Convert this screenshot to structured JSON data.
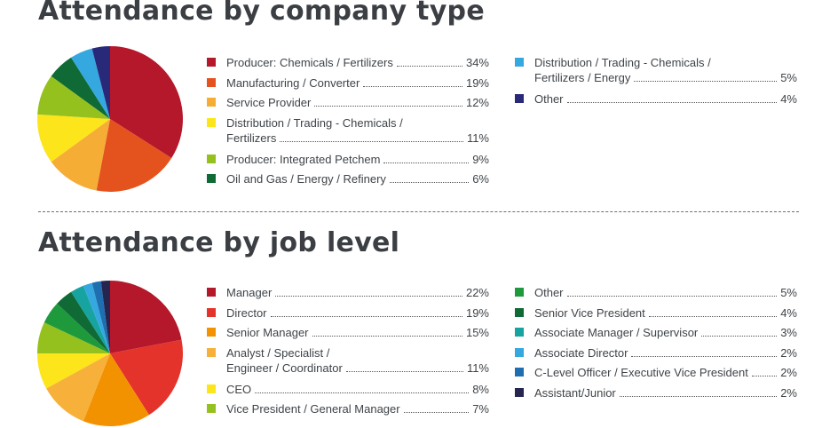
{
  "sections": [
    {
      "title": "Attendance by company type",
      "chart_data": {
        "type": "pie",
        "title": "Attendance by company type",
        "unit": "%",
        "slices": [
          {
            "label": "Producer: Chemicals / Fertilizers",
            "value": 34,
            "display": "34%",
            "color": "#b5172b"
          },
          {
            "label": "Manufacturing / Converter",
            "value": 19,
            "display": "19%",
            "color": "#e4521e"
          },
          {
            "label": "Service Provider",
            "value": 12,
            "display": "12%",
            "color": "#f5ad35"
          },
          {
            "label": "Distribution / Trading - Chemicals / Fertilizers",
            "value": 11,
            "display": "11%",
            "color": "#fde51b"
          },
          {
            "label": "Producer: Integrated Petchem",
            "value": 9,
            "display": "9%",
            "color": "#95c11f"
          },
          {
            "label": "Oil and Gas / Energy / Refinery",
            "value": 6,
            "display": "6%",
            "color": "#0f6a35"
          },
          {
            "label": "Distribution / Trading - Chemicals / Fertilizers / Energy",
            "value": 5,
            "display": "5%",
            "color": "#35a8e0"
          },
          {
            "label": "Other",
            "value": 4,
            "display": "4%",
            "color": "#29297a"
          }
        ]
      }
    },
    {
      "title": "Attendance by job level",
      "chart_data": {
        "type": "pie",
        "title": "Attendance by job level",
        "unit": "%",
        "slices": [
          {
            "label": "Manager",
            "value": 22,
            "display": "22%",
            "color": "#b5172b"
          },
          {
            "label": "Director",
            "value": 19,
            "display": "19%",
            "color": "#e4332b"
          },
          {
            "label": "Senior Manager",
            "value": 15,
            "display": "15%",
            "color": "#f39200"
          },
          {
            "label": "Analyst / Specialist / Engineer / Coordinator",
            "value": 11,
            "display": "11%",
            "color": "#f7b13b"
          },
          {
            "label": "CEO",
            "value": 8,
            "display": "8%",
            "color": "#fde51b"
          },
          {
            "label": "Vice President / General Manager",
            "value": 7,
            "display": "7%",
            "color": "#95c11f"
          },
          {
            "label": "Other",
            "value": 5,
            "display": "5%",
            "color": "#1e9a3c"
          },
          {
            "label": "Senior Vice President",
            "value": 4,
            "display": "4%",
            "color": "#0f6a35"
          },
          {
            "label": "Associate Manager / Supervisor",
            "value": 3,
            "display": "3%",
            "color": "#17a3a0"
          },
          {
            "label": "Associate Director",
            "value": 2,
            "display": "2%",
            "color": "#35a8e0"
          },
          {
            "label": "C-Level Officer / Executive Vice President",
            "value": 2,
            "display": "2%",
            "color": "#1f6fb0"
          },
          {
            "label": "Assistant/Junior",
            "value": 2,
            "display": "2%",
            "color": "#252550"
          }
        ]
      }
    }
  ]
}
